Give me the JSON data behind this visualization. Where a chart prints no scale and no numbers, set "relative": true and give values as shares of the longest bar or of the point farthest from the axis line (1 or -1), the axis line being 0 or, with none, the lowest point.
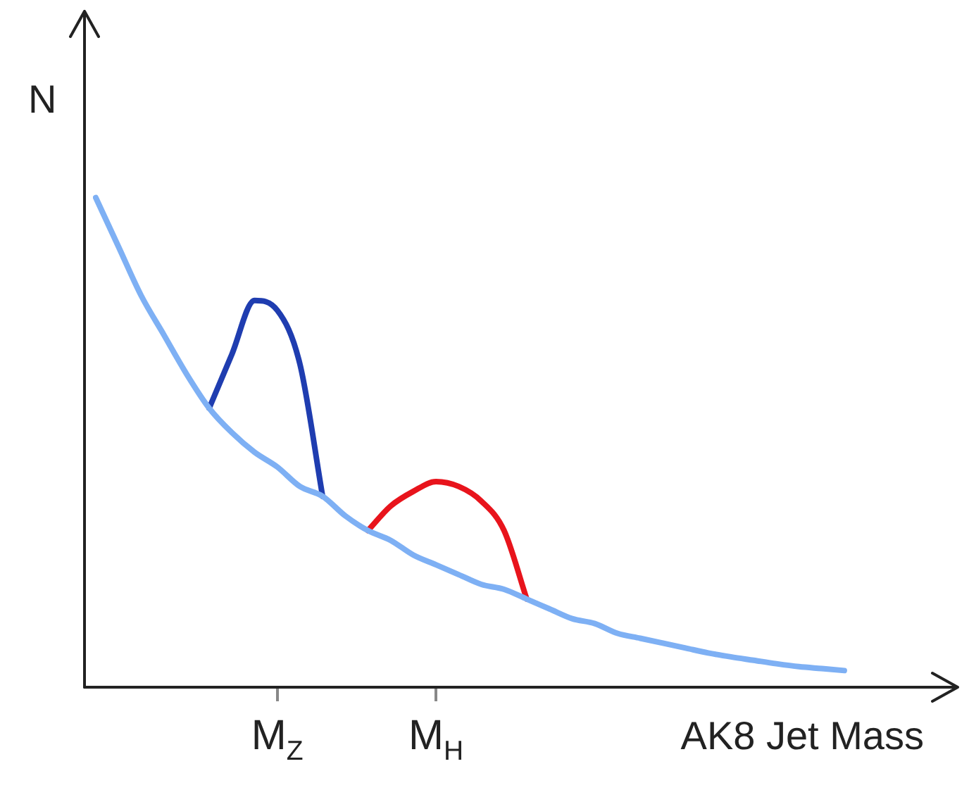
{
  "chart_data": {
    "type": "line",
    "relative": true,
    "xlabel": "AK8 Jet Mass",
    "ylabel": "N",
    "legend": false,
    "grid": false,
    "marker": "none",
    "line_style": "solid",
    "categories": [
      null,
      null,
      null,
      null,
      null,
      null,
      null,
      null,
      "M$_{Z}$",
      null,
      null,
      null,
      null,
      null,
      null,
      "M$_{H}$",
      null,
      null,
      null,
      null,
      null,
      null,
      null,
      null,
      null,
      null,
      null,
      null,
      null,
      null,
      null,
      null,
      null,
      null,
      null,
      null,
      null,
      null,
      null
    ],
    "series": [
      {
        "color": "#7eb0f4",
        "values": [
          1,
          0.9,
          0.8,
          0.72,
          0.64,
          0.57,
          0.52,
          0.48,
          0.45,
          0.41,
          0.39,
          0.35,
          0.32,
          0.3,
          0.27,
          0.25,
          0.23,
          0.21,
          0.2,
          0.18,
          0.16,
          0.14,
          0.13,
          0.11,
          0.1,
          0.09,
          0.08,
          0.07,
          0.062,
          0.055,
          0.048,
          0.042,
          0.038,
          0.034,
          null,
          null,
          null,
          null,
          null
        ]
      },
      {
        "color": "#1f3db0",
        "values": [
          null,
          null,
          null,
          null,
          null,
          0.57,
          0.68,
          0.79,
          0.77,
          0.66,
          0.39,
          null,
          null,
          null,
          null,
          null,
          null,
          null,
          null,
          null,
          null,
          null,
          null,
          null,
          null,
          null,
          null,
          null,
          null,
          null,
          null,
          null,
          null,
          null,
          null,
          null,
          null,
          null,
          null
        ]
      },
      {
        "color": "#e8141c",
        "values": [
          null,
          null,
          null,
          null,
          null,
          null,
          null,
          null,
          null,
          null,
          null,
          null,
          0.32,
          0.37,
          0.4,
          0.42,
          0.41,
          0.38,
          0.32,
          0.18,
          null,
          null,
          null,
          null,
          null,
          null,
          null,
          null,
          null,
          null,
          null,
          null,
          null,
          null,
          null,
          null,
          null,
          null,
          null
        ]
      }
    ]
  }
}
